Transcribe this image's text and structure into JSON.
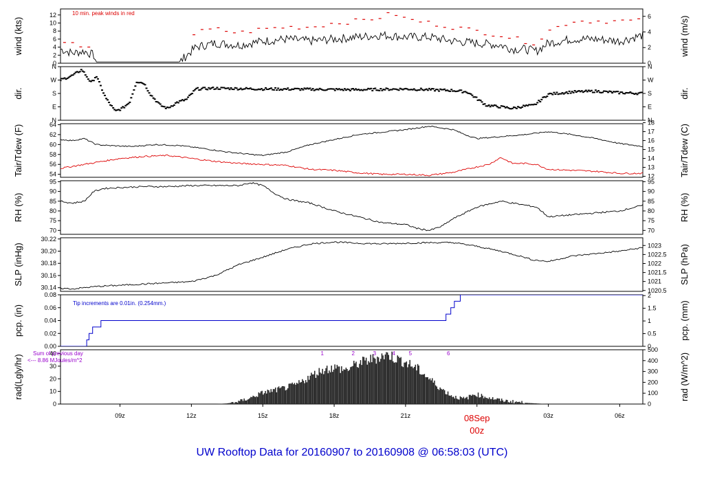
{
  "page_title": "UW Rooftop Data for 20160907  to  20160908 @ 06:58:03  (UTC)",
  "colors": {
    "frame": "#000000",
    "red_series": "#dd0000",
    "precip": "#0000cc",
    "annotation_purple": "#9900cc",
    "title": "#0000cc",
    "date_label": "#dd0000"
  },
  "x_axis": {
    "range_hours": [
      6.5,
      30.97
    ],
    "ticks": [
      {
        "hour": 9,
        "label": "09z"
      },
      {
        "hour": 12,
        "label": "12z"
      },
      {
        "hour": 15,
        "label": "15z"
      },
      {
        "hour": 18,
        "label": "18z"
      },
      {
        "hour": 21,
        "label": "21z"
      },
      {
        "hour": 27,
        "label": "03z"
      },
      {
        "hour": 30,
        "label": "06z"
      }
    ],
    "date_marker": {
      "hour": 24,
      "date": "08Sep",
      "time": "00z"
    }
  },
  "chart_data": [
    {
      "id": "wind",
      "type": "line",
      "ylabel_left": "wind (kts)",
      "ylabel_right": "wind (m/s)",
      "ylim": [
        0,
        13.5
      ],
      "ticks_left": [
        0,
        2,
        4,
        6,
        8,
        10,
        12
      ],
      "ticks_right": [
        {
          "v": 0,
          "label": "0"
        },
        {
          "v": 3.89,
          "label": "2"
        },
        {
          "v": 7.78,
          "label": "4"
        },
        {
          "v": 11.66,
          "label": "6"
        }
      ],
      "annotation": "10 min. peak winds in red",
      "series": [
        {
          "role": "line",
          "color": "#000000",
          "x": [
            6.5,
            7.0,
            7.5,
            7.9,
            8.0,
            8.5,
            10.0,
            11.5,
            11.9,
            12.2,
            13.0,
            14.0,
            15.0,
            16.0,
            17.0,
            18.0,
            19.0,
            20.0,
            21.0,
            22.0,
            23.0,
            24.0,
            25.0,
            25.5,
            26.0,
            26.5,
            27.0,
            28.0,
            29.0,
            30.0,
            31.0
          ],
          "y": [
            3.5,
            2.5,
            3.0,
            2.0,
            0.3,
            0.3,
            0.3,
            0.3,
            2.5,
            4.0,
            5.0,
            4.5,
            5.5,
            6.0,
            5.5,
            6.0,
            6.5,
            7.0,
            6.5,
            6.5,
            5.5,
            5.0,
            4.5,
            3.5,
            3.5,
            3.0,
            5.0,
            6.0,
            6.0,
            5.5,
            7.0
          ],
          "jitter": 1.1,
          "floor": 0
        },
        {
          "role": "markers",
          "color": "#dd0000",
          "x": [
            6.7,
            7.2,
            7.6,
            12.0,
            12.5,
            13.0,
            14.0,
            15.0,
            16.0,
            17.0,
            18.0,
            19.0,
            20.0,
            20.5,
            21.0,
            22.0,
            23.0,
            24.0,
            25.0,
            26.0,
            26.5,
            27.0,
            28.0,
            29.0,
            30.0,
            30.8
          ],
          "y": [
            4.8,
            4.5,
            4.2,
            7.0,
            8.0,
            8.5,
            7.5,
            8.5,
            9.0,
            9.0,
            10.0,
            10.5,
            11.5,
            12.5,
            11.0,
            10.0,
            9.0,
            8.0,
            7.0,
            5.5,
            5.0,
            8.0,
            10.5,
            10.5,
            10.5,
            10.5
          ],
          "count": 72
        }
      ]
    },
    {
      "id": "dir",
      "type": "scatter",
      "ylabel_left": "dir.",
      "ylabel_right": "dir.",
      "ylim": [
        0,
        360
      ],
      "ticks_left": [
        {
          "v": 0,
          "label": "N"
        },
        {
          "v": 90,
          "label": "E"
        },
        {
          "v": 180,
          "label": "S"
        },
        {
          "v": 270,
          "label": "W"
        },
        {
          "v": 360,
          "label": "N"
        }
      ],
      "series": [
        {
          "role": "points",
          "color": "#000000",
          "x": [
            6.5,
            7.0,
            7.4,
            7.8,
            8.0,
            8.4,
            8.8,
            9.1,
            9.4,
            9.7,
            10.0,
            10.3,
            10.7,
            11.0,
            11.4,
            11.8,
            12.2,
            13.0,
            15.0,
            17.0,
            19.0,
            21.0,
            22.0,
            23.0,
            23.6,
            24.0,
            24.4,
            25.0,
            25.5,
            26.0,
            26.4,
            27.0,
            28.0,
            29.0,
            30.0,
            31.0
          ],
          "y": [
            270,
            300,
            340,
            250,
            300,
            150,
            60,
            80,
            120,
            260,
            250,
            170,
            100,
            80,
            120,
            140,
            210,
            215,
            210,
            208,
            205,
            210,
            205,
            200,
            190,
            145,
            100,
            90,
            80,
            95,
            100,
            175,
            190,
            195,
            185,
            180
          ],
          "jitter": 8,
          "count": 420
        }
      ]
    },
    {
      "id": "temp",
      "type": "line",
      "ylabel_left": "Tair/Tdew (F)",
      "ylabel_right": "Tair/Tdew (C)",
      "ylim": [
        53.4,
        64.2
      ],
      "ticks_left": [
        54,
        56,
        58,
        60,
        62,
        64
      ],
      "ticks_right": [
        {
          "v": 53.6,
          "label": "12"
        },
        {
          "v": 55.4,
          "label": "13"
        },
        {
          "v": 57.2,
          "label": "14"
        },
        {
          "v": 59.0,
          "label": "15"
        },
        {
          "v": 60.8,
          "label": "16"
        },
        {
          "v": 62.6,
          "label": "17"
        },
        {
          "v": 64.4,
          "label": "18"
        }
      ],
      "series": [
        {
          "name": "Tair",
          "color": "#000000",
          "x": [
            6.5,
            7.0,
            7.5,
            8.0,
            8.5,
            9.5,
            10.5,
            11.5,
            12.5,
            13.5,
            14.5,
            15.0,
            16.0,
            17.0,
            18.0,
            19.0,
            20.0,
            21.0,
            22.0,
            23.0,
            23.5,
            24.0,
            25.0,
            26.0,
            27.0,
            28.0,
            29.0,
            30.0,
            31.0
          ],
          "y": [
            61.0,
            60.8,
            61.2,
            60.0,
            59.8,
            59.6,
            60.0,
            59.8,
            59.2,
            58.5,
            58.0,
            57.8,
            58.5,
            60.0,
            61.0,
            62.0,
            62.5,
            63.0,
            63.7,
            63.0,
            62.0,
            61.2,
            61.6,
            62.0,
            62.6,
            62.0,
            61.2,
            60.2,
            59.6
          ],
          "jitter": 0.12
        },
        {
          "name": "Tdew",
          "color": "#dd0000",
          "x": [
            6.5,
            7.0,
            8.0,
            9.0,
            10.0,
            11.0,
            12.0,
            13.0,
            14.0,
            15.0,
            16.0,
            17.0,
            18.0,
            19.0,
            20.0,
            21.0,
            22.0,
            23.0,
            24.0,
            24.5,
            25.0,
            25.5,
            26.0,
            26.5,
            27.0,
            28.0,
            29.0,
            30.0,
            31.0
          ],
          "y": [
            55.2,
            55.6,
            56.4,
            57.2,
            57.6,
            57.8,
            57.2,
            56.6,
            56.2,
            56.0,
            55.8,
            55.0,
            54.8,
            54.3,
            54.0,
            54.0,
            53.8,
            54.4,
            55.5,
            56.0,
            57.4,
            56.2,
            56.2,
            56.0,
            55.0,
            54.8,
            54.6,
            54.2,
            54.2
          ],
          "jitter": 0.15
        }
      ]
    },
    {
      "id": "rh",
      "type": "line",
      "ylabel_left": "RH (%)",
      "ylabel_right": "RH (%)",
      "ylim": [
        68,
        95.5
      ],
      "ticks_left": [
        70,
        75,
        80,
        85,
        90,
        95
      ],
      "ticks_right": [
        {
          "v": 70,
          "label": "70"
        },
        {
          "v": 75,
          "label": "75"
        },
        {
          "v": 80,
          "label": "80"
        },
        {
          "v": 85,
          "label": "85"
        },
        {
          "v": 90,
          "label": "90"
        },
        {
          "v": 95,
          "label": "95"
        }
      ],
      "series": [
        {
          "name": "RH",
          "color": "#000000",
          "x": [
            6.5,
            7.0,
            7.5,
            7.9,
            8.3,
            9.0,
            10.0,
            11.0,
            12.0,
            13.0,
            14.0,
            14.5,
            15.0,
            15.5,
            16.0,
            17.0,
            18.0,
            19.0,
            20.0,
            21.0,
            21.5,
            22.0,
            22.5,
            23.0,
            24.0,
            25.0,
            26.0,
            26.5,
            27.0,
            28.0,
            29.0,
            30.0,
            31.0
          ],
          "y": [
            85,
            84,
            85,
            90,
            91.5,
            92,
            92.5,
            92.5,
            93,
            93,
            93,
            94.5,
            93,
            89,
            86,
            84,
            80,
            77,
            74,
            73,
            71,
            70,
            72,
            76,
            82,
            85,
            83,
            82,
            77,
            78,
            79,
            80,
            83
          ],
          "jitter": 0.4
        }
      ]
    },
    {
      "id": "slp",
      "type": "line",
      "ylabel_left": "SLP (inHg)",
      "ylabel_right": "SLP (hPa)",
      "ylim": [
        30.134,
        30.222
      ],
      "ticks_left": [
        {
          "v": 30.14,
          "label": "30.14"
        },
        {
          "v": 30.16,
          "label": "30.16"
        },
        {
          "v": 30.18,
          "label": "30.18"
        },
        {
          "v": 30.2,
          "label": "30.20"
        },
        {
          "v": 30.22,
          "label": "30.22"
        }
      ],
      "ticks_right": [
        {
          "v": 30.1354,
          "label": "1020.5"
        },
        {
          "v": 30.1502,
          "label": "1021"
        },
        {
          "v": 30.1649,
          "label": "1021.5"
        },
        {
          "v": 30.1797,
          "label": "1022"
        },
        {
          "v": 30.1945,
          "label": "1022.5"
        },
        {
          "v": 30.2093,
          "label": "1023"
        }
      ],
      "series": [
        {
          "name": "SLP",
          "color": "#000000",
          "x": [
            6.5,
            7.0,
            8.0,
            9.0,
            10.0,
            11.0,
            12.0,
            13.0,
            14.0,
            15.0,
            16.0,
            17.0,
            18.0,
            19.0,
            20.0,
            21.0,
            22.0,
            23.0,
            24.0,
            25.0,
            26.0,
            26.3,
            27.0,
            28.0,
            29.0,
            30.0,
            31.0
          ],
          "y": [
            30.139,
            30.138,
            30.142,
            30.144,
            30.146,
            30.148,
            30.15,
            30.16,
            30.178,
            30.19,
            30.203,
            30.212,
            30.215,
            30.213,
            30.212,
            30.213,
            30.214,
            30.214,
            30.208,
            30.2,
            30.19,
            30.186,
            30.183,
            30.192,
            30.196,
            30.2,
            30.206
          ],
          "jitter": 0.0012
        }
      ]
    },
    {
      "id": "pcp",
      "type": "step",
      "ylabel_left": "pcp. (in)",
      "ylabel_right": "pcp. (mm)",
      "ylim": [
        0,
        0.08
      ],
      "ticks_left": [
        {
          "v": 0,
          "label": "0.00"
        },
        {
          "v": 0.02,
          "label": "0.02"
        },
        {
          "v": 0.04,
          "label": "0.04"
        },
        {
          "v": 0.06,
          "label": "0.06"
        },
        {
          "v": 0.08,
          "label": "0.08"
        }
      ],
      "ticks_right": [
        {
          "v": 0,
          "label": "0"
        },
        {
          "v": 0.01969,
          "label": "0.5"
        },
        {
          "v": 0.03937,
          "label": "1"
        },
        {
          "v": 0.05906,
          "label": "1.5"
        },
        {
          "v": 0.07874,
          "label": "2"
        }
      ],
      "annotation": "Tip increments are 0.01in. (0.254mm.)",
      "series": [
        {
          "name": "precip",
          "color": "#0000cc",
          "x": [
            6.5,
            7.6,
            7.7,
            7.85,
            8.2,
            22.7,
            22.9,
            23.05,
            23.3
          ],
          "y": [
            0.0,
            0.01,
            0.02,
            0.03,
            0.04,
            0.05,
            0.06,
            0.07,
            0.08
          ]
        }
      ]
    },
    {
      "id": "rad",
      "type": "area",
      "ylabel_left": "rad(Lgly/hr)",
      "ylabel_right": "rad (W/m^2)",
      "ylim": [
        0,
        43
      ],
      "ticks_left": [
        0,
        10,
        20,
        30,
        40
      ],
      "ticks_right": [
        {
          "v": 0,
          "label": "0"
        },
        {
          "v": 8.6,
          "label": "100"
        },
        {
          "v": 17.2,
          "label": "200"
        },
        {
          "v": 25.8,
          "label": "300"
        },
        {
          "v": 34.4,
          "label": "400"
        },
        {
          "v": 43.0,
          "label": "500"
        }
      ],
      "annotation_lines": [
        "Sum of previous day",
        "<--- 8.86 MJoules/m^2"
      ],
      "hour_markers": [
        {
          "hour": 17.5,
          "label": "1"
        },
        {
          "hour": 18.8,
          "label": "2"
        },
        {
          "hour": 19.7,
          "label": "3"
        },
        {
          "hour": 20.5,
          "label": "4"
        },
        {
          "hour": 21.2,
          "label": "5"
        },
        {
          "hour": 22.8,
          "label": "6"
        }
      ],
      "series": [
        {
          "name": "radiation",
          "color": "#222222",
          "x": [
            6.5,
            13.0,
            13.5,
            14.0,
            14.5,
            15.0,
            15.5,
            16.0,
            16.5,
            17.0,
            17.5,
            18.0,
            18.5,
            19.0,
            19.5,
            20.0,
            20.3,
            20.6,
            21.0,
            21.5,
            22.0,
            22.5,
            23.0,
            23.5,
            23.9,
            24.3,
            25.0,
            25.5,
            26.0,
            26.5,
            27.0,
            31.0
          ],
          "y": [
            0,
            0,
            0.5,
            2,
            5,
            9,
            11,
            13,
            16,
            22,
            27,
            29,
            27,
            32,
            35,
            38,
            39,
            36,
            33,
            28,
            20,
            12,
            6,
            4,
            8,
            6,
            3,
            2,
            1,
            0.5,
            0,
            0
          ],
          "jitter": 4
        }
      ]
    }
  ]
}
